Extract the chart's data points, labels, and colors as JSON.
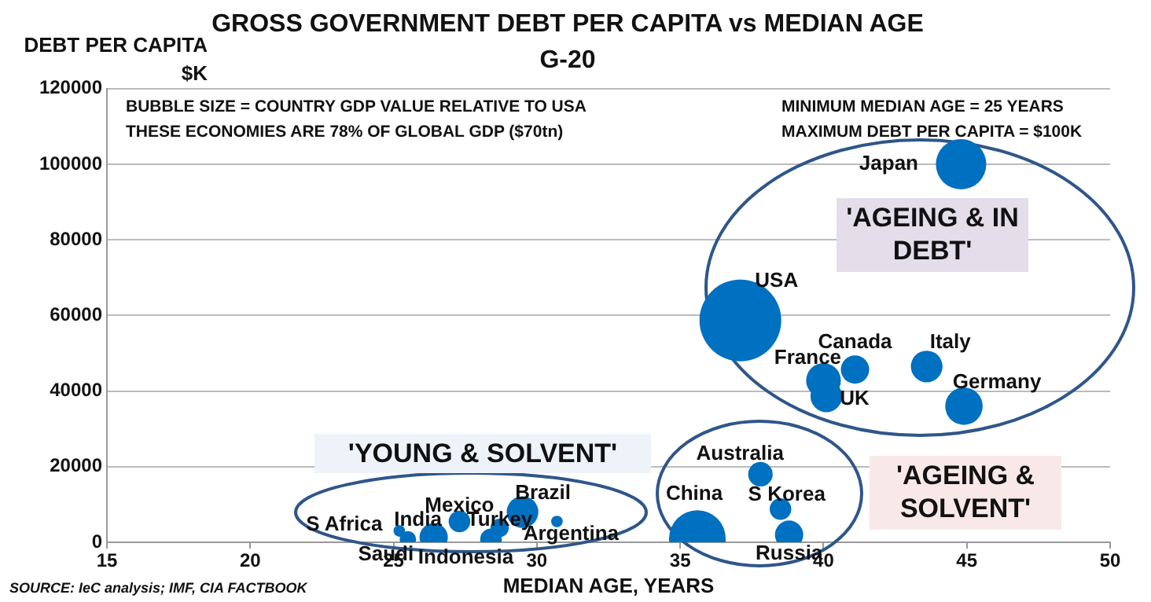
{
  "chart_data": {
    "type": "bubble",
    "title": "GROSS GOVERNMENT DEBT PER CAPITA vs MEDIAN AGE",
    "subtitle": "G-20",
    "xlabel": "MEDIAN AGE, YEARS",
    "ylabel": "DEBT PER CAPITA $K",
    "xlim": [
      15,
      50
    ],
    "xticks": [
      15,
      20,
      25,
      30,
      35,
      40,
      45,
      50
    ],
    "ylim": [
      0,
      120000
    ],
    "yticks": [
      0,
      20000,
      40000,
      60000,
      80000,
      100000,
      120000
    ],
    "grid": "y",
    "legend": false,
    "series": [
      {
        "name": "Japan",
        "color": "#0070c0",
        "x": [
          44.8
        ],
        "values": [
          100000
        ],
        "sizes": [
          0.38
        ]
      },
      {
        "name": "USA",
        "color": "#0070c0",
        "x": [
          37.1
        ],
        "values": [
          58700
        ],
        "sizes": [
          1
        ]
      },
      {
        "name": "Canada",
        "color": "#0070c0",
        "x": [
          41.1
        ],
        "values": [
          45700
        ],
        "sizes": [
          0.12
        ]
      },
      {
        "name": "France",
        "color": "#0070c0",
        "x": [
          40.0
        ],
        "values": [
          42800
        ],
        "sizes": [
          0.18
        ]
      },
      {
        "name": "UK",
        "color": "#0070c0",
        "x": [
          40.1
        ],
        "values": [
          38600
        ],
        "sizes": [
          0.15
        ]
      },
      {
        "name": "Italy",
        "color": "#0070c0",
        "x": [
          43.6
        ],
        "values": [
          46500
        ],
        "sizes": [
          0.15
        ]
      },
      {
        "name": "Germany",
        "color": "#0070c0",
        "x": [
          44.9
        ],
        "values": [
          36000
        ],
        "sizes": [
          0.21
        ]
      },
      {
        "name": "Australia",
        "color": "#0070c0",
        "x": [
          37.8
        ],
        "values": [
          18000
        ],
        "sizes": [
          0.09
        ]
      },
      {
        "name": "China",
        "color": "#0070c0",
        "x": [
          35.6
        ],
        "values": [
          1000
        ],
        "sizes": [
          0.48
        ]
      },
      {
        "name": "S Korea",
        "color": "#0070c0",
        "x": [
          38.5
        ],
        "values": [
          8800
        ],
        "sizes": [
          0.07
        ]
      },
      {
        "name": "Russia",
        "color": "#0070c0",
        "x": [
          38.8
        ],
        "values": [
          2000
        ],
        "sizes": [
          0.12
        ]
      },
      {
        "name": "Brazil",
        "color": "#0070c0",
        "x": [
          29.5
        ],
        "values": [
          8000
        ],
        "sizes": [
          0.15
        ]
      },
      {
        "name": "Argentina",
        "color": "#0070c0",
        "x": [
          30.7
        ],
        "values": [
          5500
        ],
        "sizes": [
          0.02
        ]
      },
      {
        "name": "Mexico",
        "color": "#0070c0",
        "x": [
          27.3
        ],
        "values": [
          5500
        ],
        "sizes": [
          0.07
        ]
      },
      {
        "name": "Turkey",
        "color": "#0070c0",
        "x": [
          28.7
        ],
        "values": [
          3800
        ],
        "sizes": [
          0.05
        ]
      },
      {
        "name": "India",
        "color": "#0070c0",
        "x": [
          26.4
        ],
        "values": [
          1300
        ],
        "sizes": [
          0.12
        ]
      },
      {
        "name": "Indonesia",
        "color": "#0070c0",
        "x": [
          28.4
        ],
        "values": [
          800
        ],
        "sizes": [
          0.07
        ]
      },
      {
        "name": "Saudi",
        "color": "#0070c0",
        "x": [
          25.5
        ],
        "values": [
          800
        ],
        "sizes": [
          0.04
        ]
      },
      {
        "name": "S Africa",
        "color": "#0070c0",
        "x": [
          25.2
        ],
        "values": [
          3000
        ],
        "sizes": [
          0.02
        ]
      }
    ],
    "annotations": [
      "BUBBLE SIZE = COUNTRY GDP VALUE RELATIVE TO USA",
      "THESE ECONOMIES ARE 78% OF GLOBAL GDP ($70tn)",
      "MINIMUM MEDIAN AGE = 25 YEARS",
      "MAXIMUM DEBT PER CAPITA = $100K",
      "'AGEING & IN DEBT'",
      "'YOUNG & SOLVENT'",
      "'AGEING & SOLVENT'",
      "SOURCE: IeC analysis; IMF, CIA FACTBOOK"
    ]
  }
}
